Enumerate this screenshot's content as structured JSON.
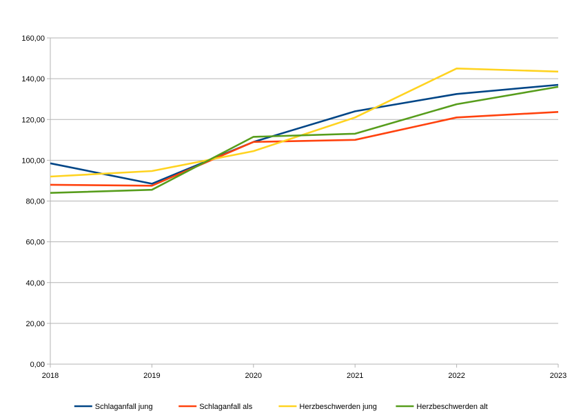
{
  "chart_data": {
    "type": "line",
    "title": "",
    "xlabel": "",
    "ylabel": "",
    "categories": [
      "2018",
      "2019",
      "2020",
      "2021",
      "2022",
      "2023"
    ],
    "ylim": [
      0,
      160
    ],
    "y_ticks": [
      "0,00",
      "20,00",
      "40,00",
      "60,00",
      "80,00",
      "100,00",
      "120,00",
      "140,00",
      "160,00"
    ],
    "grid": "horizontal",
    "legend_position": "bottom",
    "series": [
      {
        "name": "Schlaganfall jung",
        "color": "#004586",
        "values": [
          98.5,
          88.5,
          109.0,
          124.0,
          132.5,
          137.0
        ]
      },
      {
        "name": "Schlaganfall als",
        "color": "#ff420e",
        "values": [
          88.0,
          87.5,
          109.0,
          110.0,
          121.0,
          123.7
        ]
      },
      {
        "name": "Herzbeschwerden jung",
        "color": "#ffd320",
        "values": [
          92.0,
          94.7,
          104.5,
          121.0,
          145.0,
          143.5
        ]
      },
      {
        "name": "Herzbeschwerden alt",
        "color": "#579d1c",
        "values": [
          84.0,
          85.5,
          111.5,
          113.0,
          127.5,
          136.0
        ]
      }
    ]
  }
}
